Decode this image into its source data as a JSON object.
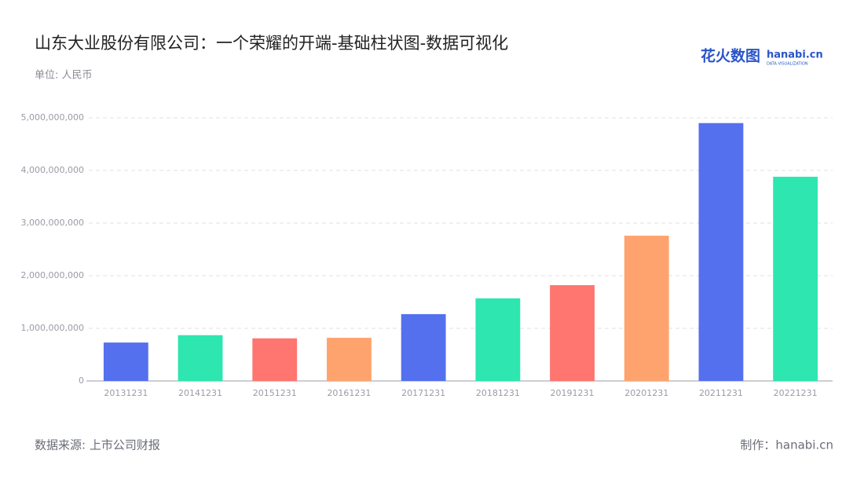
{
  "chart_data": {
    "type": "bar",
    "title": "山东大业股份有限公司：一个荣耀的开端-基础柱状图-数据可视化",
    "subtitle": "单位: 人民币",
    "source": "数据来源: 上市公司财报",
    "credit": "制作：hanabi.cn",
    "logo": {
      "brand": "花火数图",
      "site": "hanabi.cn",
      "tagline": "DATA VISUALIZATION"
    },
    "categories": [
      "20131231",
      "20141231",
      "20151231",
      "20161231",
      "20171231",
      "20181231",
      "20191231",
      "20201231",
      "20211231",
      "20221231"
    ],
    "values": [
      730000000,
      870000000,
      810000000,
      820000000,
      1270000000,
      1570000000,
      1820000000,
      2760000000,
      4900000000,
      3880000000
    ],
    "colors": [
      "#5470ef",
      "#2de6b0",
      "#ff7570",
      "#ffa36e",
      "#5470ef",
      "#2de6b0",
      "#ff7570",
      "#ffa36e",
      "#5470ef",
      "#2de6b0"
    ],
    "ylim": [
      0,
      5000000000
    ],
    "yticks": [
      0,
      {
        "value": 1000000000,
        "label": "1,000,000,000"
      },
      {
        "value": 2000000000,
        "label": "2,000,000,000"
      },
      {
        "value": 3000000000,
        "label": "3,000,000,000"
      },
      {
        "value": 4000000000,
        "label": "4,000,000,000"
      },
      {
        "value": 5000000000,
        "label": "5,000,000,000"
      }
    ],
    "grid": true
  }
}
